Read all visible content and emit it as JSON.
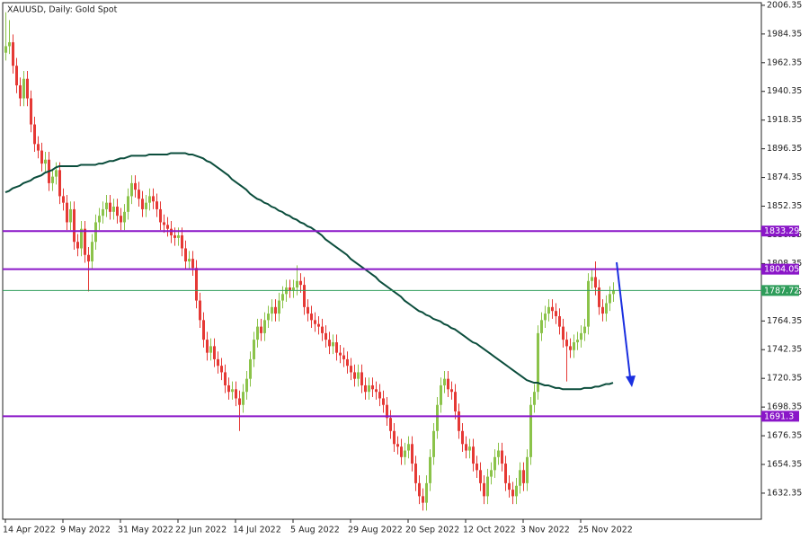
{
  "chart_data": {
    "type": "candlestick",
    "title": "XAUUSD, Daily:  Gold Spot",
    "up_color": "#8bc34a",
    "down_color": "#e53935",
    "ylim": [
      1612.35,
      2008.35
    ],
    "yticks": [
      2006.35,
      1984.35,
      1962.35,
      1940.35,
      1918.35,
      1896.35,
      1874.35,
      1852.35,
      1830.35,
      1808.35,
      1786.35,
      1764.35,
      1742.35,
      1720.35,
      1698.35,
      1676.35,
      1654.35,
      1632.35
    ],
    "categories": [
      "14 Apr 2022",
      null,
      null,
      null,
      null,
      null,
      null,
      null,
      null,
      null,
      null,
      null,
      null,
      null,
      null,
      null,
      "9 May 2022",
      null,
      null,
      null,
      null,
      null,
      null,
      null,
      null,
      null,
      null,
      null,
      null,
      null,
      null,
      null,
      "31 May 2022",
      null,
      null,
      null,
      null,
      null,
      null,
      null,
      null,
      null,
      null,
      null,
      null,
      null,
      null,
      null,
      "22 Jun 2022",
      null,
      null,
      null,
      null,
      null,
      null,
      null,
      null,
      null,
      null,
      null,
      null,
      null,
      null,
      null,
      "14 Jul 2022",
      null,
      null,
      null,
      null,
      null,
      null,
      null,
      null,
      null,
      null,
      null,
      null,
      null,
      null,
      null,
      "5 Aug 2022",
      null,
      null,
      null,
      null,
      null,
      null,
      null,
      null,
      null,
      null,
      null,
      null,
      null,
      null,
      null,
      "29 Aug 2022",
      null,
      null,
      null,
      null,
      null,
      null,
      null,
      null,
      null,
      null,
      null,
      null,
      null,
      null,
      null,
      "20 Sep 2022",
      null,
      null,
      null,
      null,
      null,
      null,
      null,
      null,
      null,
      null,
      null,
      null,
      null,
      null,
      null,
      "12 Oct 2022",
      null,
      null,
      null,
      null,
      null,
      null,
      null,
      null,
      null,
      null,
      null,
      null,
      null,
      null,
      null,
      "3 Nov 2022",
      null,
      null,
      null,
      null,
      null,
      null,
      null,
      null,
      null,
      null,
      null,
      null,
      null,
      null,
      null,
      "25 Nov 2022",
      null,
      null,
      null,
      null,
      null,
      null,
      null,
      null,
      null
    ],
    "open": [
      1970,
      1975,
      1978,
      1960,
      1945,
      1935,
      1950,
      1935,
      1915,
      1900,
      1895,
      1885,
      1888,
      1870,
      1875,
      1880,
      1860,
      1855,
      1840,
      1850,
      1825,
      1820,
      1835,
      1815,
      1810,
      1825,
      1840,
      1845,
      1850,
      1855,
      1848,
      1852,
      1845,
      1840,
      1848,
      1860,
      1870,
      1865,
      1858,
      1850,
      1855,
      1860,
      1856,
      1850,
      1840,
      1838,
      1835,
      1830,
      1828,
      1830,
      1820,
      1810,
      1812,
      1805,
      1780,
      1765,
      1750,
      1740,
      1745,
      1735,
      1730,
      1725,
      1715,
      1710,
      1712,
      1705,
      1700,
      1710,
      1720,
      1735,
      1750,
      1760,
      1755,
      1765,
      1770,
      1775,
      1770,
      1780,
      1785,
      1790,
      1788,
      1790,
      1795,
      1792,
      1775,
      1770,
      1765,
      1762,
      1760,
      1755,
      1750,
      1745,
      1748,
      1740,
      1738,
      1735,
      1730,
      1725,
      1720,
      1725,
      1715,
      1710,
      1715,
      1712,
      1710,
      1705,
      1700,
      1690,
      1680,
      1670,
      1668,
      1660,
      1665,
      1670,
      1655,
      1640,
      1630,
      1625,
      1640,
      1660,
      1680,
      1700,
      1715,
      1720,
      1712,
      1710,
      1695,
      1680,
      1670,
      1665,
      1668,
      1655,
      1650,
      1640,
      1630,
      1645,
      1650,
      1660,
      1665,
      1655,
      1640,
      1635,
      1630,
      1638,
      1650,
      1640,
      1660,
      1700,
      1710,
      1755,
      1765,
      1770,
      1775,
      1772,
      1768,
      1760,
      1750,
      1745,
      1742,
      1748,
      1750,
      1755,
      1760,
      1795,
      1798,
      1790,
      1775,
      1770,
      1778,
      1785
    ],
    "high": [
      2001,
      1995,
      1984,
      1966,
      1951,
      1956,
      1956,
      1941,
      1921,
      1906,
      1901,
      1894,
      1894,
      1881,
      1886,
      1886,
      1866,
      1861,
      1856,
      1856,
      1831,
      1841,
      1841,
      1821,
      1831,
      1846,
      1851,
      1856,
      1861,
      1861,
      1858,
      1858,
      1851,
      1854,
      1866,
      1876,
      1876,
      1871,
      1864,
      1861,
      1866,
      1866,
      1862,
      1856,
      1846,
      1844,
      1841,
      1836,
      1836,
      1836,
      1826,
      1818,
      1818,
      1811,
      1786,
      1771,
      1756,
      1751,
      1751,
      1741,
      1736,
      1731,
      1721,
      1718,
      1718,
      1711,
      1716,
      1726,
      1741,
      1756,
      1766,
      1766,
      1771,
      1776,
      1781,
      1781,
      1786,
      1791,
      1796,
      1796,
      1796,
      1807,
      1801,
      1798,
      1781,
      1776,
      1771,
      1768,
      1766,
      1761,
      1756,
      1754,
      1754,
      1746,
      1744,
      1741,
      1736,
      1731,
      1731,
      1731,
      1721,
      1721,
      1721,
      1718,
      1716,
      1711,
      1706,
      1696,
      1686,
      1676,
      1674,
      1671,
      1676,
      1676,
      1661,
      1646,
      1636,
      1646,
      1666,
      1686,
      1706,
      1721,
      1726,
      1726,
      1718,
      1716,
      1701,
      1686,
      1676,
      1674,
      1674,
      1661,
      1656,
      1646,
      1651,
      1656,
      1666,
      1671,
      1671,
      1661,
      1646,
      1641,
      1644,
      1656,
      1656,
      1666,
      1706,
      1716,
      1761,
      1771,
      1776,
      1781,
      1781,
      1778,
      1774,
      1766,
      1756,
      1751,
      1754,
      1756,
      1761,
      1766,
      1801,
      1804,
      1810,
      1796,
      1781,
      1784,
      1791,
      1794
    ],
    "low": [
      1964,
      1969,
      1954,
      1939,
      1929,
      1929,
      1929,
      1909,
      1894,
      1889,
      1879,
      1879,
      1864,
      1864,
      1869,
      1854,
      1849,
      1834,
      1834,
      1819,
      1814,
      1814,
      1809,
      1787,
      1804,
      1819,
      1834,
      1839,
      1844,
      1842,
      1842,
      1839,
      1834,
      1834,
      1842,
      1854,
      1859,
      1852,
      1844,
      1844,
      1849,
      1850,
      1844,
      1834,
      1832,
      1829,
      1824,
      1822,
      1822,
      1814,
      1804,
      1804,
      1799,
      1774,
      1759,
      1744,
      1734,
      1734,
      1729,
      1724,
      1719,
      1709,
      1704,
      1704,
      1699,
      1680,
      1694,
      1704,
      1714,
      1729,
      1744,
      1749,
      1749,
      1759,
      1764,
      1764,
      1764,
      1774,
      1779,
      1782,
      1782,
      1784,
      1786,
      1769,
      1764,
      1759,
      1756,
      1754,
      1749,
      1744,
      1739,
      1739,
      1734,
      1732,
      1729,
      1724,
      1719,
      1714,
      1714,
      1709,
      1704,
      1704,
      1706,
      1704,
      1699,
      1694,
      1684,
      1674,
      1664,
      1662,
      1654,
      1654,
      1659,
      1649,
      1634,
      1624,
      1619,
      1619,
      1634,
      1654,
      1674,
      1694,
      1709,
      1706,
      1704,
      1689,
      1674,
      1664,
      1659,
      1659,
      1649,
      1644,
      1634,
      1624,
      1624,
      1639,
      1644,
      1654,
      1649,
      1634,
      1629,
      1624,
      1624,
      1632,
      1634,
      1634,
      1654,
      1694,
      1704,
      1749,
      1759,
      1764,
      1766,
      1762,
      1754,
      1744,
      1718,
      1736,
      1736,
      1742,
      1744,
      1749,
      1754,
      1789,
      1784,
      1769,
      1764,
      1764,
      1772,
      1779
    ],
    "close": [
      1975,
      1978,
      1960,
      1945,
      1935,
      1950,
      1935,
      1915,
      1900,
      1895,
      1885,
      1888,
      1870,
      1875,
      1880,
      1860,
      1855,
      1840,
      1850,
      1825,
      1820,
      1835,
      1815,
      1810,
      1825,
      1840,
      1845,
      1850,
      1855,
      1848,
      1852,
      1845,
      1840,
      1848,
      1860,
      1870,
      1865,
      1858,
      1850,
      1855,
      1860,
      1856,
      1850,
      1840,
      1838,
      1835,
      1830,
      1828,
      1830,
      1820,
      1810,
      1812,
      1805,
      1780,
      1765,
      1750,
      1740,
      1745,
      1735,
      1730,
      1725,
      1715,
      1710,
      1712,
      1705,
      1700,
      1710,
      1720,
      1735,
      1750,
      1760,
      1755,
      1765,
      1770,
      1775,
      1770,
      1780,
      1785,
      1790,
      1788,
      1790,
      1795,
      1792,
      1775,
      1770,
      1765,
      1762,
      1760,
      1755,
      1750,
      1745,
      1748,
      1740,
      1738,
      1735,
      1730,
      1725,
      1720,
      1725,
      1715,
      1710,
      1715,
      1712,
      1710,
      1705,
      1700,
      1690,
      1680,
      1670,
      1668,
      1660,
      1665,
      1670,
      1655,
      1640,
      1630,
      1625,
      1640,
      1660,
      1680,
      1700,
      1715,
      1720,
      1712,
      1710,
      1695,
      1680,
      1670,
      1665,
      1668,
      1655,
      1650,
      1640,
      1630,
      1645,
      1650,
      1660,
      1665,
      1655,
      1640,
      1635,
      1630,
      1638,
      1650,
      1640,
      1660,
      1700,
      1710,
      1755,
      1765,
      1770,
      1775,
      1772,
      1768,
      1760,
      1750,
      1745,
      1742,
      1748,
      1750,
      1755,
      1760,
      1795,
      1798,
      1790,
      1775,
      1770,
      1778,
      1785,
      1788
    ],
    "moving_average": {
      "color": "#0b4d3c",
      "values": [
        1863,
        1864,
        1866,
        1867,
        1868,
        1870,
        1871,
        1872,
        1874,
        1875,
        1876,
        1878,
        1879,
        1880,
        1882,
        1883,
        1883,
        1883,
        1883,
        1883,
        1883,
        1884,
        1884,
        1884,
        1884,
        1884,
        1885,
        1885,
        1886,
        1887,
        1887,
        1888,
        1889,
        1889,
        1890,
        1891,
        1891,
        1891,
        1891,
        1891,
        1892,
        1892,
        1892,
        1892,
        1892,
        1892,
        1893,
        1893,
        1893,
        1893,
        1893,
        1892,
        1892,
        1891,
        1890,
        1889,
        1887,
        1886,
        1884,
        1882,
        1880,
        1878,
        1876,
        1873,
        1871,
        1869,
        1867,
        1865,
        1862,
        1860,
        1858,
        1857,
        1855,
        1854,
        1852,
        1851,
        1849,
        1848,
        1846,
        1845,
        1843,
        1842,
        1840,
        1839,
        1837,
        1836,
        1834,
        1832,
        1830,
        1827,
        1825,
        1823,
        1821,
        1819,
        1817,
        1815,
        1812,
        1810,
        1808,
        1806,
        1804,
        1802,
        1800,
        1798,
        1795,
        1793,
        1791,
        1789,
        1787,
        1785,
        1783,
        1780,
        1778,
        1776,
        1774,
        1772,
        1771,
        1769,
        1768,
        1766,
        1765,
        1764,
        1762,
        1761,
        1759,
        1758,
        1756,
        1754,
        1752,
        1750,
        1748,
        1747,
        1745,
        1743,
        1741,
        1739,
        1737,
        1735,
        1733,
        1731,
        1729,
        1727,
        1725,
        1723,
        1721,
        1719,
        1718,
        1717,
        1717,
        1716,
        1715,
        1715,
        1714,
        1713,
        1713,
        1712,
        1712,
        1712,
        1712,
        1712,
        1712,
        1713,
        1713,
        1713,
        1714,
        1714,
        1715,
        1716,
        1716,
        1717
      ]
    },
    "levels": [
      {
        "value": 1833.29,
        "color": "#8a16c8"
      },
      {
        "value": 1804.05,
        "color": "#8a16c8"
      },
      {
        "value": 1787.72,
        "color": "#2e9d5a"
      },
      {
        "value": 1691.3,
        "color": "#8a16c8"
      }
    ]
  }
}
